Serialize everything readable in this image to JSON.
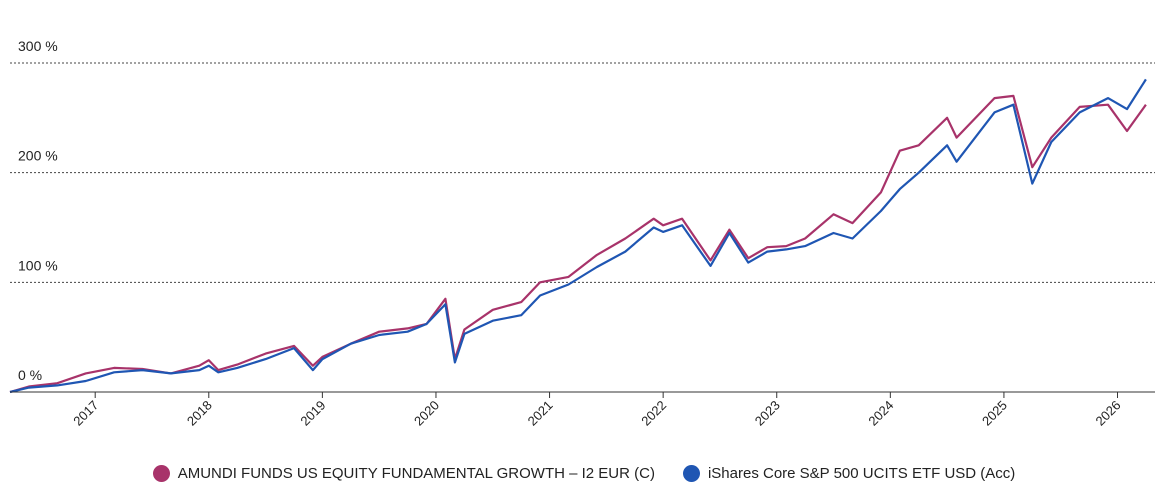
{
  "chart_data": {
    "type": "line",
    "title": "",
    "xlabel": "",
    "ylabel": "",
    "y_ticks": [
      "0 %",
      "100 %",
      "200 %",
      "300 %"
    ],
    "x_ticks": [
      "2017",
      "2018",
      "2019",
      "2020",
      "2021",
      "2022",
      "2023",
      "2024",
      "2025",
      "2026"
    ],
    "ylim": [
      0,
      300
    ],
    "grid": "horizontal dotted",
    "legend_position": "bottom",
    "series": [
      {
        "name": "AMUNDI FUNDS US EQUITY FUNDAMENTAL GROWTH – I2 EUR (C)",
        "color": "#a8336a",
        "points": [
          [
            "2016-04",
            0
          ],
          [
            "2016-06",
            5
          ],
          [
            "2016-09",
            8
          ],
          [
            "2016-12",
            17
          ],
          [
            "2017-03",
            22
          ],
          [
            "2017-06",
            21
          ],
          [
            "2017-09",
            17
          ],
          [
            "2017-12",
            24
          ],
          [
            "2018-01",
            29
          ],
          [
            "2018-02",
            20
          ],
          [
            "2018-04",
            25
          ],
          [
            "2018-07",
            35
          ],
          [
            "2018-10",
            42
          ],
          [
            "2018-12",
            24
          ],
          [
            "2019-01",
            32
          ],
          [
            "2019-04",
            44
          ],
          [
            "2019-07",
            55
          ],
          [
            "2019-10",
            58
          ],
          [
            "2019-12",
            62
          ],
          [
            "2020-02",
            85
          ],
          [
            "2020-03",
            30
          ],
          [
            "2020-04",
            57
          ],
          [
            "2020-07",
            75
          ],
          [
            "2020-10",
            82
          ],
          [
            "2020-12",
            100
          ],
          [
            "2021-03",
            105
          ],
          [
            "2021-06",
            125
          ],
          [
            "2021-09",
            140
          ],
          [
            "2021-12",
            158
          ],
          [
            "2022-01",
            152
          ],
          [
            "2022-03",
            158
          ],
          [
            "2022-06",
            120
          ],
          [
            "2022-08",
            148
          ],
          [
            "2022-10",
            122
          ],
          [
            "2022-12",
            132
          ],
          [
            "2023-02",
            133
          ],
          [
            "2023-04",
            140
          ],
          [
            "2023-07",
            162
          ],
          [
            "2023-09",
            154
          ],
          [
            "2023-12",
            182
          ],
          [
            "2024-02",
            220
          ],
          [
            "2024-04",
            225
          ],
          [
            "2024-07",
            250
          ],
          [
            "2024-08",
            232
          ],
          [
            "2024-12",
            268
          ],
          [
            "2025-02",
            270
          ],
          [
            "2025-04",
            205
          ],
          [
            "2025-06",
            232
          ],
          [
            "2025-09",
            260
          ],
          [
            "2025-12",
            262
          ],
          [
            "2026-02",
            238
          ],
          [
            "2026-04",
            262
          ]
        ]
      },
      {
        "name": "iShares Core S&P 500 UCITS ETF USD (Acc)",
        "color": "#1f56b3",
        "points": [
          [
            "2016-04",
            0
          ],
          [
            "2016-06",
            4
          ],
          [
            "2016-09",
            6
          ],
          [
            "2016-12",
            10
          ],
          [
            "2017-03",
            18
          ],
          [
            "2017-06",
            20
          ],
          [
            "2017-09",
            17
          ],
          [
            "2017-12",
            20
          ],
          [
            "2018-01",
            24
          ],
          [
            "2018-02",
            18
          ],
          [
            "2018-04",
            22
          ],
          [
            "2018-07",
            30
          ],
          [
            "2018-10",
            40
          ],
          [
            "2018-12",
            20
          ],
          [
            "2019-01",
            30
          ],
          [
            "2019-04",
            44
          ],
          [
            "2019-07",
            52
          ],
          [
            "2019-10",
            55
          ],
          [
            "2019-12",
            62
          ],
          [
            "2020-02",
            80
          ],
          [
            "2020-03",
            27
          ],
          [
            "2020-04",
            53
          ],
          [
            "2020-07",
            65
          ],
          [
            "2020-10",
            70
          ],
          [
            "2020-12",
            88
          ],
          [
            "2021-03",
            98
          ],
          [
            "2021-06",
            114
          ],
          [
            "2021-09",
            128
          ],
          [
            "2021-12",
            150
          ],
          [
            "2022-01",
            146
          ],
          [
            "2022-03",
            152
          ],
          [
            "2022-06",
            115
          ],
          [
            "2022-08",
            145
          ],
          [
            "2022-10",
            118
          ],
          [
            "2022-12",
            128
          ],
          [
            "2023-02",
            130
          ],
          [
            "2023-04",
            133
          ],
          [
            "2023-07",
            145
          ],
          [
            "2023-09",
            140
          ],
          [
            "2023-12",
            165
          ],
          [
            "2024-02",
            185
          ],
          [
            "2024-04",
            200
          ],
          [
            "2024-07",
            225
          ],
          [
            "2024-08",
            210
          ],
          [
            "2024-12",
            255
          ],
          [
            "2025-02",
            262
          ],
          [
            "2025-04",
            190
          ],
          [
            "2025-06",
            228
          ],
          [
            "2025-09",
            255
          ],
          [
            "2025-12",
            268
          ],
          [
            "2026-02",
            258
          ],
          [
            "2026-04",
            285
          ]
        ]
      }
    ]
  }
}
